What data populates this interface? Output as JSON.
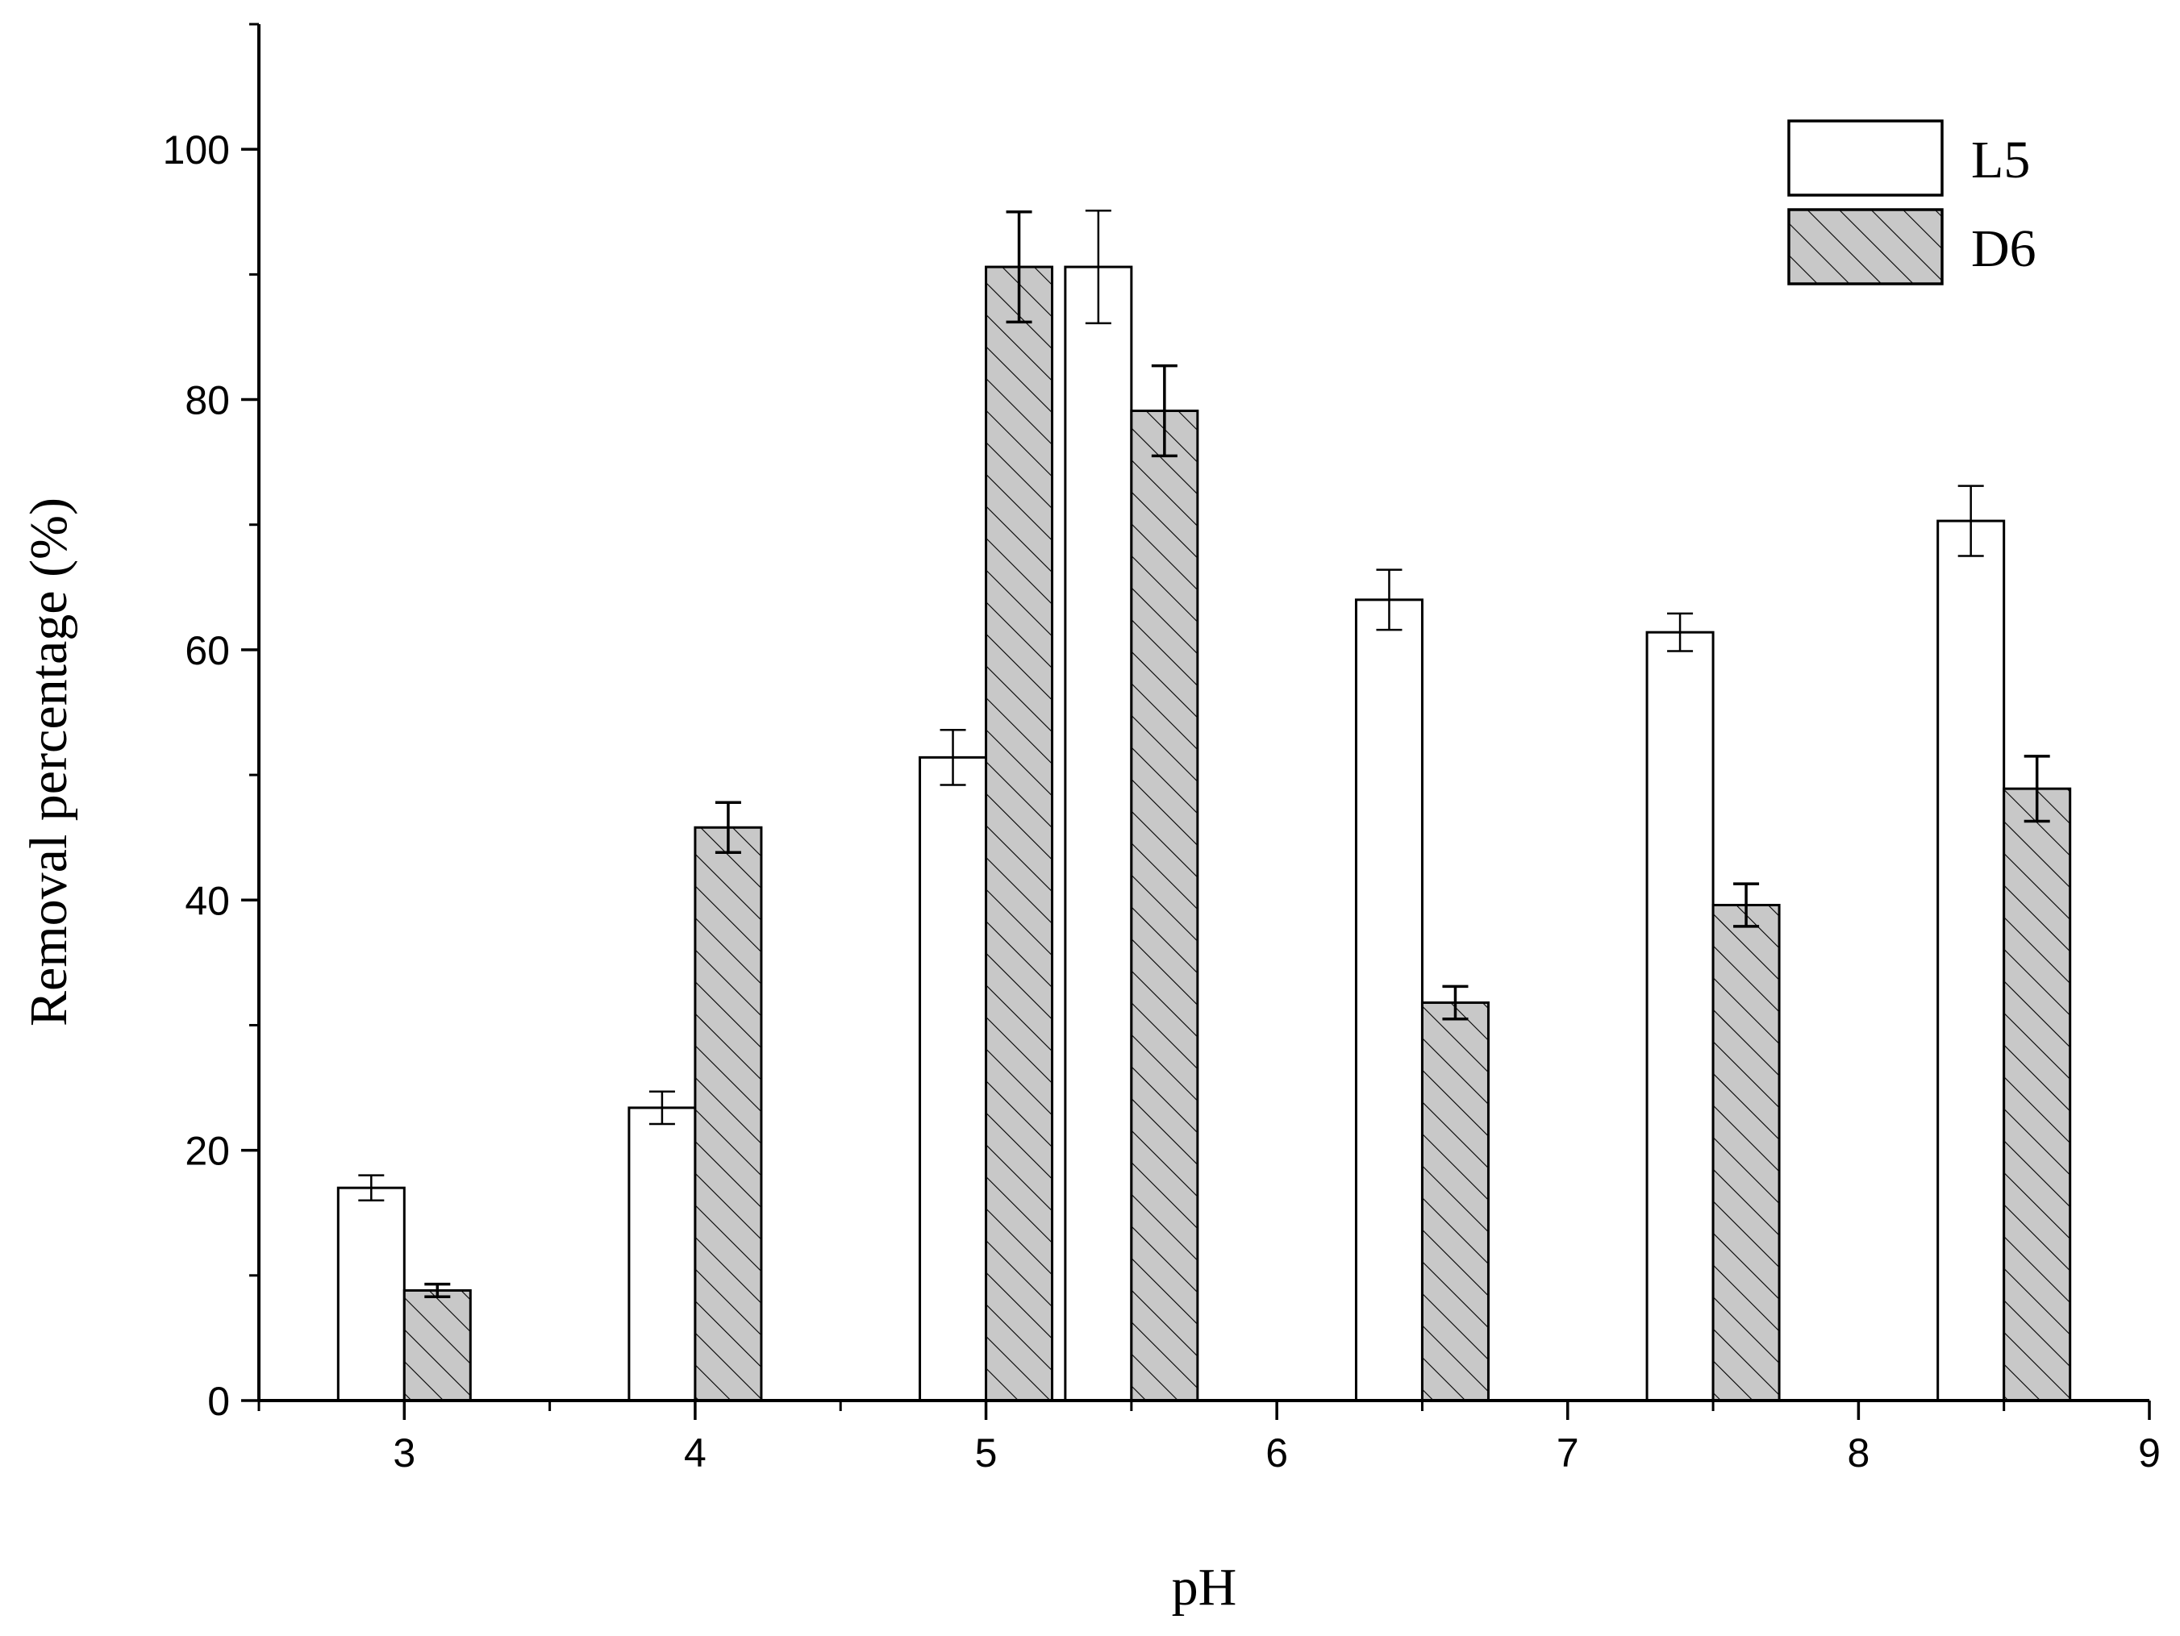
{
  "chart_data": {
    "type": "bar",
    "xlabel": "pH",
    "ylabel": "Removal percentage (%)",
    "xlim": [
      2.5,
      9
    ],
    "ylim": [
      0,
      110
    ],
    "x_ticks": [
      "3",
      "4",
      "5",
      "6",
      "7",
      "8",
      "9"
    ],
    "y_ticks": [
      "0",
      "20",
      "40",
      "60",
      "80",
      "100"
    ],
    "legend_position": "top-right",
    "grid": false,
    "groups": [
      {
        "x": 3.0
      },
      {
        "x": 4.0
      },
      {
        "x": 5.0
      },
      {
        "x": 5.5
      },
      {
        "x": 6.5
      },
      {
        "x": 7.5
      },
      {
        "x": 8.5
      }
    ],
    "series": [
      {
        "name": "L5",
        "pattern": "open",
        "color": "#ffffff",
        "values": [
          17.0,
          23.4,
          51.4,
          90.6,
          64.0,
          61.4,
          70.3
        ],
        "errors": [
          1.0,
          1.3,
          2.2,
          4.5,
          2.4,
          1.5,
          2.8
        ]
      },
      {
        "name": "D6",
        "pattern": "hatched",
        "color": "#c8c8c8",
        "values": [
          8.8,
          45.8,
          90.6,
          79.1,
          31.8,
          39.6,
          48.9
        ],
        "errors": [
          0.5,
          2.0,
          4.4,
          3.6,
          1.3,
          1.7,
          2.6
        ]
      }
    ]
  }
}
